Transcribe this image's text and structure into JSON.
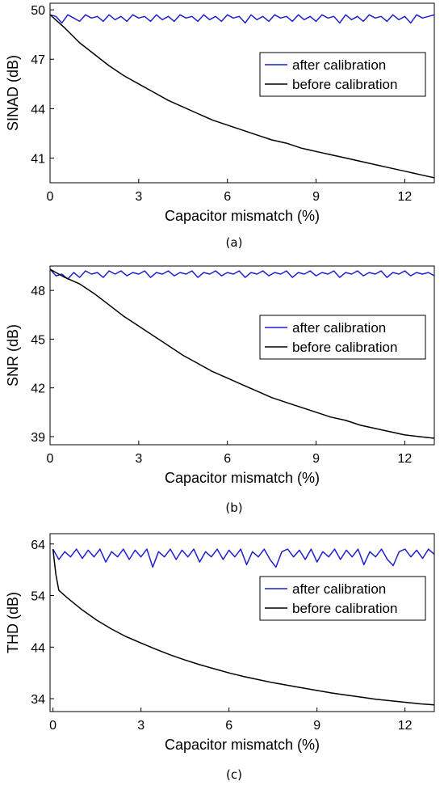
{
  "colors": {
    "after": "#1f1fcf",
    "before": "#000000",
    "axis": "#000000"
  },
  "chart_data": [
    {
      "type": "line",
      "caption": "(a)",
      "xlabel": "Capacitor mismatch (%)",
      "ylabel": "SINAD (dB)",
      "xlim": [
        0,
        13
      ],
      "ylim": [
        39.5,
        50.4
      ],
      "xticks": [
        0,
        3,
        6,
        9,
        12
      ],
      "yticks": [
        41,
        44,
        47,
        50
      ],
      "grid": false,
      "legend_position": "center-right",
      "series": [
        {
          "name": "after calibration",
          "x": [
            0,
            0.2,
            0.4,
            0.6,
            0.8,
            1.0,
            1.2,
            1.4,
            1.6,
            1.8,
            2.0,
            2.2,
            2.4,
            2.6,
            2.8,
            3.0,
            3.2,
            3.4,
            3.6,
            3.8,
            4.0,
            4.2,
            4.4,
            4.6,
            4.8,
            5.0,
            5.2,
            5.4,
            5.6,
            5.8,
            6.0,
            6.2,
            6.4,
            6.6,
            6.8,
            7.0,
            7.2,
            7.4,
            7.6,
            7.8,
            8.0,
            8.2,
            8.4,
            8.6,
            8.8,
            9.0,
            9.2,
            9.4,
            9.6,
            9.8,
            10.0,
            10.2,
            10.4,
            10.6,
            10.8,
            11.0,
            11.2,
            11.4,
            11.6,
            11.8,
            12.0,
            12.2,
            12.4,
            12.6,
            12.8,
            13.0
          ],
          "y": [
            49.7,
            49.6,
            49.2,
            49.7,
            49.5,
            49.3,
            49.7,
            49.5,
            49.6,
            49.3,
            49.7,
            49.4,
            49.6,
            49.3,
            49.7,
            49.5,
            49.6,
            49.3,
            49.7,
            49.4,
            49.6,
            49.3,
            49.7,
            49.5,
            49.6,
            49.3,
            49.7,
            49.4,
            49.6,
            49.3,
            49.7,
            49.5,
            49.6,
            49.2,
            49.7,
            49.4,
            49.6,
            49.3,
            49.7,
            49.5,
            49.6,
            49.3,
            49.7,
            49.4,
            49.6,
            49.3,
            49.7,
            49.5,
            49.6,
            49.2,
            49.7,
            49.4,
            49.6,
            49.3,
            49.7,
            49.5,
            49.6,
            49.3,
            49.7,
            49.4,
            49.6,
            49.2,
            49.7,
            49.5,
            49.6,
            49.7
          ]
        },
        {
          "name": "before calibration",
          "x": [
            0,
            0.5,
            1,
            1.5,
            2,
            2.5,
            3,
            3.5,
            4,
            4.5,
            5,
            5.5,
            6,
            6.5,
            7,
            7.5,
            8,
            8.5,
            9,
            9.5,
            10,
            10.5,
            11,
            11.5,
            12,
            12.5,
            13
          ],
          "y": [
            49.7,
            48.9,
            48.0,
            47.3,
            46.6,
            46.0,
            45.5,
            45.0,
            44.5,
            44.1,
            43.7,
            43.3,
            43.0,
            42.7,
            42.4,
            42.1,
            41.9,
            41.6,
            41.4,
            41.2,
            41.0,
            40.8,
            40.6,
            40.4,
            40.2,
            40.0,
            39.8
          ]
        }
      ]
    },
    {
      "type": "line",
      "caption": "(b)",
      "xlabel": "Capacitor mismatch (%)",
      "ylabel": "SNR (dB)",
      "xlim": [
        0,
        13
      ],
      "ylim": [
        38.5,
        49.5
      ],
      "xticks": [
        0,
        3,
        6,
        9,
        12
      ],
      "yticks": [
        39,
        42,
        45,
        48
      ],
      "grid": false,
      "legend_position": "center-right",
      "series": [
        {
          "name": "after calibration",
          "x": [
            0,
            0.2,
            0.4,
            0.6,
            0.8,
            1.0,
            1.2,
            1.4,
            1.6,
            1.8,
            2.0,
            2.2,
            2.4,
            2.6,
            2.8,
            3.0,
            3.2,
            3.4,
            3.6,
            3.8,
            4.0,
            4.2,
            4.4,
            4.6,
            4.8,
            5.0,
            5.2,
            5.4,
            5.6,
            5.8,
            6.0,
            6.2,
            6.4,
            6.6,
            6.8,
            7.0,
            7.2,
            7.4,
            7.6,
            7.8,
            8.0,
            8.2,
            8.4,
            8.6,
            8.8,
            9.0,
            9.2,
            9.4,
            9.6,
            9.8,
            10.0,
            10.2,
            10.4,
            10.6,
            10.8,
            11.0,
            11.2,
            11.4,
            11.6,
            11.8,
            12.0,
            12.2,
            12.4,
            12.6,
            12.8,
            13.0
          ],
          "y": [
            49.3,
            48.9,
            49.0,
            48.7,
            49.1,
            48.8,
            49.2,
            49.0,
            49.1,
            48.8,
            49.2,
            49.0,
            49.2,
            48.9,
            49.1,
            49.0,
            49.2,
            48.8,
            49.1,
            49.0,
            49.2,
            48.9,
            49.1,
            49.0,
            49.2,
            48.8,
            49.1,
            49.0,
            49.2,
            48.9,
            49.1,
            49.0,
            49.2,
            48.8,
            49.1,
            49.0,
            49.2,
            48.9,
            49.1,
            49.0,
            49.2,
            48.8,
            49.1,
            49.0,
            49.2,
            48.9,
            49.1,
            49.0,
            49.2,
            48.8,
            49.1,
            49.0,
            49.2,
            48.9,
            49.1,
            49.0,
            49.2,
            48.8,
            49.1,
            49.0,
            49.2,
            48.9,
            49.1,
            49.0,
            49.1,
            48.9
          ]
        },
        {
          "name": "before calibration",
          "x": [
            0,
            0.5,
            1,
            1.5,
            2,
            2.5,
            3,
            3.5,
            4,
            4.5,
            5,
            5.5,
            6,
            6.5,
            7,
            7.5,
            8,
            8.5,
            9,
            9.5,
            10,
            10.5,
            11,
            11.5,
            12,
            12.5,
            13
          ],
          "y": [
            49.3,
            48.8,
            48.4,
            47.8,
            47.1,
            46.4,
            45.8,
            45.2,
            44.6,
            44.0,
            43.5,
            43.0,
            42.6,
            42.2,
            41.8,
            41.4,
            41.1,
            40.8,
            40.5,
            40.2,
            40.0,
            39.7,
            39.5,
            39.3,
            39.1,
            39.0,
            38.9
          ]
        }
      ]
    },
    {
      "type": "line",
      "caption": "(c)",
      "xlabel": "Capacitor mismatch (%)",
      "ylabel": "THD (dB)",
      "xlim": [
        -0.1,
        13
      ],
      "ylim": [
        31.5,
        66
      ],
      "xticks": [
        0,
        3,
        6,
        9,
        12
      ],
      "yticks": [
        34,
        44,
        54,
        64
      ],
      "grid": false,
      "legend_position": "center-right",
      "series": [
        {
          "name": "after calibration",
          "x": [
            0,
            0.2,
            0.4,
            0.6,
            0.8,
            1.0,
            1.2,
            1.4,
            1.6,
            1.8,
            2.0,
            2.2,
            2.4,
            2.6,
            2.8,
            3.0,
            3.2,
            3.4,
            3.6,
            3.8,
            4.0,
            4.2,
            4.4,
            4.6,
            4.8,
            5.0,
            5.2,
            5.4,
            5.6,
            5.8,
            6.0,
            6.2,
            6.4,
            6.6,
            6.8,
            7.0,
            7.2,
            7.4,
            7.6,
            7.8,
            8.0,
            8.2,
            8.4,
            8.6,
            8.8,
            9.0,
            9.2,
            9.4,
            9.6,
            9.8,
            10.0,
            10.2,
            10.4,
            10.6,
            10.8,
            11.0,
            11.2,
            11.4,
            11.6,
            11.8,
            12.0,
            12.2,
            12.4,
            12.6,
            12.8,
            13.0
          ],
          "y": [
            63.0,
            61.0,
            62.5,
            61.5,
            63.0,
            61.2,
            62.8,
            61.5,
            63.0,
            60.5,
            62.5,
            61.5,
            63.0,
            61.0,
            62.8,
            61.5,
            63.0,
            59.5,
            62.5,
            61.5,
            63.0,
            61.0,
            62.8,
            61.5,
            63.0,
            60.5,
            62.5,
            61.5,
            63.0,
            61.0,
            62.8,
            61.5,
            63.0,
            60.0,
            62.5,
            61.5,
            63.0,
            61.0,
            59.5,
            62.5,
            63.0,
            61.5,
            62.8,
            61.0,
            63.0,
            60.5,
            62.5,
            61.5,
            63.0,
            61.0,
            62.8,
            61.5,
            63.0,
            60.0,
            62.5,
            61.5,
            63.0,
            61.0,
            59.8,
            62.5,
            63.0,
            61.5,
            62.8,
            61.2,
            63.0,
            62.0
          ]
        },
        {
          "name": "before calibration",
          "x": [
            0,
            0.1,
            0.2,
            0.5,
            1,
            1.5,
            2,
            2.5,
            3,
            3.5,
            4,
            4.5,
            5,
            5.5,
            6,
            6.5,
            7,
            7.5,
            8,
            8.5,
            9,
            9.5,
            10,
            10.5,
            11,
            11.5,
            12,
            12.5,
            13
          ],
          "y": [
            63.0,
            58.0,
            55.0,
            53.5,
            51.2,
            49.2,
            47.5,
            46.0,
            44.8,
            43.6,
            42.5,
            41.5,
            40.6,
            39.8,
            39.0,
            38.3,
            37.7,
            37.1,
            36.6,
            36.1,
            35.6,
            35.1,
            34.7,
            34.3,
            33.9,
            33.6,
            33.3,
            33.0,
            32.8
          ]
        }
      ]
    }
  ]
}
